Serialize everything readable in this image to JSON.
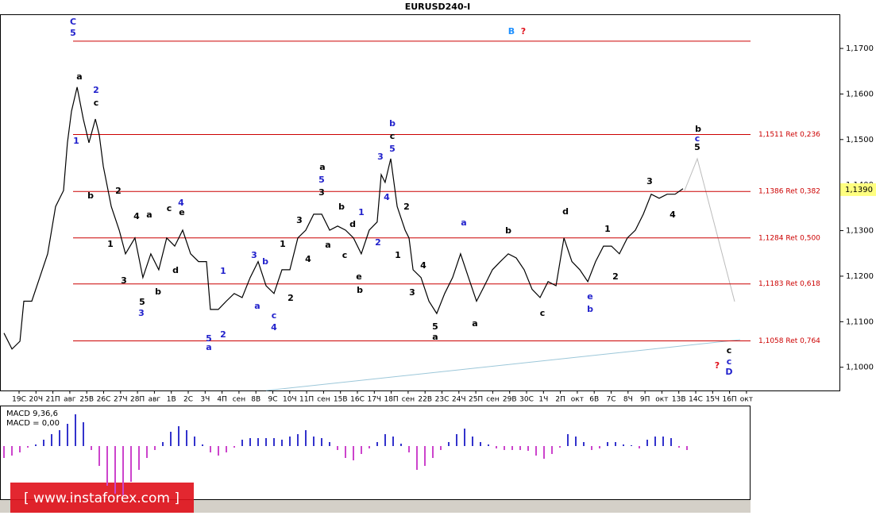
{
  "chart_data": [
    {
      "type": "line",
      "title": "EURUSD240-I",
      "xlim": [
        -1.1268,
        48.5446
      ],
      "xticks": [
        {
          "value": 0,
          "label": "19C"
        },
        {
          "value": 1,
          "label": "20Ч"
        },
        {
          "value": 2,
          "label": "21П"
        },
        {
          "value": 3,
          "label": "авг"
        },
        {
          "value": 4,
          "label": "25В"
        },
        {
          "value": 5,
          "label": "26C"
        },
        {
          "value": 6,
          "label": "27Ч"
        },
        {
          "value": 7,
          "label": "28П"
        },
        {
          "value": 8,
          "label": "авг"
        },
        {
          "value": 9,
          "label": "1B"
        },
        {
          "value": 10,
          "label": "2C"
        },
        {
          "value": 11,
          "label": "3Ч"
        },
        {
          "value": 12,
          "label": "4П"
        },
        {
          "value": 13,
          "label": "сен"
        },
        {
          "value": 14,
          "label": "8B"
        },
        {
          "value": 15,
          "label": "9C"
        },
        {
          "value": 16,
          "label": "10Ч"
        },
        {
          "value": 17,
          "label": "11П"
        },
        {
          "value": 18,
          "label": "сен"
        },
        {
          "value": 19,
          "label": "15B"
        },
        {
          "value": 20,
          "label": "16C"
        },
        {
          "value": 21,
          "label": "17Ч"
        },
        {
          "value": 22,
          "label": "18П"
        },
        {
          "value": 23,
          "label": "сен"
        },
        {
          "value": 24,
          "label": "22B"
        },
        {
          "value": 25,
          "label": "23C"
        },
        {
          "value": 26,
          "label": "24Ч"
        },
        {
          "value": 27,
          "label": "25П"
        },
        {
          "value": 28,
          "label": "сен"
        },
        {
          "value": 29,
          "label": "29B"
        },
        {
          "value": 30,
          "label": "30C"
        },
        {
          "value": 31,
          "label": "1Ч"
        },
        {
          "value": 32,
          "label": "2П"
        },
        {
          "value": 33,
          "label": "окт"
        },
        {
          "value": 34,
          "label": "6B"
        },
        {
          "value": 35,
          "label": "7C"
        },
        {
          "value": 36,
          "label": "8Ч"
        },
        {
          "value": 37,
          "label": "9П"
        },
        {
          "value": 38,
          "label": "окт"
        },
        {
          "value": 39,
          "label": "13B"
        },
        {
          "value": 40,
          "label": "14C"
        },
        {
          "value": 41,
          "label": "15Ч"
        },
        {
          "value": 42,
          "label": "16П"
        },
        {
          "value": 43,
          "label": "окт"
        }
      ],
      "ylim": [
        1.0949,
        1.1775
      ],
      "yticks": [
        {
          "value": 1.1,
          "label": "1,1000"
        },
        {
          "value": 1.11,
          "label": "1,1100"
        },
        {
          "value": 1.12,
          "label": "1,1200"
        },
        {
          "value": 1.13,
          "label": "1,1300"
        },
        {
          "value": 1.14,
          "label": "1,1400"
        },
        {
          "value": 1.15,
          "label": "1,1500"
        },
        {
          "value": 1.16,
          "label": "1,1600"
        },
        {
          "value": 1.17,
          "label": "1,1700"
        }
      ],
      "x": [
        -0.89,
        -0.42,
        0.05,
        0.28,
        0.75,
        1.22,
        1.69,
        2.16,
        2.63,
        2.86,
        3.1,
        3.43,
        3.8,
        4.13,
        4.51,
        4.74,
        4.98,
        5.45,
        5.92,
        6.29,
        6.85,
        7.32,
        7.79,
        8.26,
        8.73,
        9.2,
        9.67,
        10.14,
        10.61,
        11.08,
        11.31,
        11.78,
        12.25,
        12.72,
        13.19,
        13.66,
        14.13,
        14.6,
        15.07,
        15.54,
        16.01,
        16.48,
        16.95,
        17.42,
        17.89,
        18.36,
        18.83,
        19.3,
        19.77,
        20.23,
        20.7,
        21.17,
        21.41,
        21.64,
        21.97,
        22.35,
        22.82,
        23.05,
        23.29,
        23.76,
        24.23,
        24.69,
        25.16,
        25.63,
        26.1,
        26.57,
        27.04,
        27.51,
        27.98,
        28.45,
        28.92,
        29.39,
        29.86,
        30.33,
        30.8,
        31.27,
        31.74,
        32.21,
        32.68,
        33.15,
        33.62,
        34.08,
        34.55,
        35.02,
        35.49,
        35.96,
        36.43,
        36.9,
        37.37,
        37.84,
        38.31,
        38.78,
        39.25
      ],
      "series": [
        {
          "color": "#000000",
          "values": [
            1.1075,
            1.104,
            1.1057,
            1.1145,
            1.1145,
            1.1197,
            1.1249,
            1.1353,
            1.1388,
            1.1493,
            1.1562,
            1.1615,
            1.1545,
            1.1493,
            1.1545,
            1.151,
            1.1441,
            1.1353,
            1.1301,
            1.1249,
            1.1284,
            1.1197,
            1.1249,
            1.1214,
            1.1284,
            1.1266,
            1.1301,
            1.1249,
            1.1232,
            1.1232,
            1.1127,
            1.1127,
            1.1145,
            1.1162,
            1.1153,
            1.1197,
            1.1232,
            1.1179,
            1.1162,
            1.1214,
            1.1214,
            1.1284,
            1.1301,
            1.1336,
            1.1336,
            1.1301,
            1.131,
            1.1301,
            1.1284,
            1.1249,
            1.1301,
            1.1319,
            1.1423,
            1.1406,
            1.1458,
            1.1353,
            1.1301,
            1.1284,
            1.1214,
            1.1197,
            1.1145,
            1.1118,
            1.1162,
            1.1197,
            1.1249,
            1.1197,
            1.1145,
            1.1179,
            1.1214,
            1.1232,
            1.1249,
            1.124,
            1.1214,
            1.1171,
            1.1153,
            1.1188,
            1.1179,
            1.1284,
            1.1232,
            1.1214,
            1.1188,
            1.1232,
            1.1266,
            1.1266,
            1.1249,
            1.1284,
            1.1301,
            1.1336,
            1.138,
            1.1371,
            1.138,
            1.138,
            1.1392
          ]
        }
      ],
      "level_color": "#cc0000",
      "levels": [
        {
          "value": 1.1716
        },
        {
          "value": 1.1511,
          "label": "1,1511 Ret 0,236"
        },
        {
          "value": 1.1386,
          "label": "1,1386 Ret 0,382"
        },
        {
          "value": 1.1284,
          "label": "1,1284 Ret 0,500"
        },
        {
          "value": 1.1183,
          "label": "1,1183 Ret 0,618"
        },
        {
          "value": 1.1058,
          "label": "1,1058 Ret 0,764"
        }
      ],
      "last_price": {
        "value": 1.139,
        "label": "1,1390"
      },
      "annotations": [
        {
          "text": "C",
          "color": "#2222cc"
        },
        {
          "text": "5",
          "color": "#2222cc"
        },
        {
          "text": "a",
          "color": "#000000"
        },
        {
          "text": "2",
          "color": "#2222cc"
        },
        {
          "text": "c",
          "color": "#000000"
        },
        {
          "text": "1",
          "color": "#2222cc"
        },
        {
          "text": "b",
          "color": "#000000"
        },
        {
          "text": "2",
          "color": "#000000"
        },
        {
          "text": "1",
          "color": "#000000"
        },
        {
          "text": "3",
          "color": "#000000"
        },
        {
          "text": "4",
          "color": "#000000"
        },
        {
          "text": "a",
          "color": "#000000"
        },
        {
          "text": "5",
          "color": "#000000"
        },
        {
          "text": "3",
          "color": "#2222cc"
        },
        {
          "text": "b",
          "color": "#000000"
        },
        {
          "text": "c",
          "color": "#000000"
        },
        {
          "text": "4",
          "color": "#2222cc"
        },
        {
          "text": "e",
          "color": "#000000"
        },
        {
          "text": "d",
          "color": "#000000"
        },
        {
          "text": "1",
          "color": "#2222cc"
        },
        {
          "text": "5",
          "color": "#2222cc"
        },
        {
          "text": "a",
          "color": "#2222cc"
        },
        {
          "text": "2",
          "color": "#2222cc"
        },
        {
          "text": "3",
          "color": "#2222cc"
        },
        {
          "text": "b",
          "color": "#2222cc"
        },
        {
          "text": "a",
          "color": "#2222cc"
        },
        {
          "text": "c",
          "color": "#2222cc"
        },
        {
          "text": "4",
          "color": "#2222cc"
        },
        {
          "text": "2",
          "color": "#000000"
        },
        {
          "text": "1",
          "color": "#000000"
        },
        {
          "text": "3",
          "color": "#000000"
        },
        {
          "text": "4",
          "color": "#000000"
        },
        {
          "text": "a",
          "color": "#000000"
        },
        {
          "text": "5",
          "color": "#2222cc"
        },
        {
          "text": "3",
          "color": "#000000"
        },
        {
          "text": "a",
          "color": "#000000"
        },
        {
          "text": "b",
          "color": "#000000"
        },
        {
          "text": "c",
          "color": "#000000"
        },
        {
          "text": "d",
          "color": "#000000"
        },
        {
          "text": "1",
          "color": "#2222cc"
        },
        {
          "text": "e",
          "color": "#000000"
        },
        {
          "text": "b",
          "color": "#000000"
        },
        {
          "text": "3",
          "color": "#2222cc"
        },
        {
          "text": "4",
          "color": "#2222cc"
        },
        {
          "text": "2",
          "color": "#2222cc"
        },
        {
          "text": "b",
          "color": "#2222cc"
        },
        {
          "text": "c",
          "color": "#000000"
        },
        {
          "text": "5",
          "color": "#2222cc"
        },
        {
          "text": "2",
          "color": "#000000"
        },
        {
          "text": "1",
          "color": "#000000"
        },
        {
          "text": "4",
          "color": "#000000"
        },
        {
          "text": "3",
          "color": "#000000"
        },
        {
          "text": "5",
          "color": "#000000"
        },
        {
          "text": "a",
          "color": "#000000"
        },
        {
          "text": "a",
          "color": "#2222cc"
        },
        {
          "text": "a",
          "color": "#000000"
        },
        {
          "text": "b",
          "color": "#000000"
        },
        {
          "text": "c",
          "color": "#000000"
        },
        {
          "text": "d",
          "color": "#000000"
        },
        {
          "text": "e",
          "color": "#2222cc"
        },
        {
          "text": "b",
          "color": "#2222cc"
        },
        {
          "text": "1",
          "color": "#000000"
        },
        {
          "text": "2",
          "color": "#000000"
        },
        {
          "text": "3",
          "color": "#000000"
        },
        {
          "text": "4",
          "color": "#000000"
        },
        {
          "text": "b",
          "color": "#000000"
        },
        {
          "text": "c",
          "color": "#2222cc"
        },
        {
          "text": "5",
          "color": "#000000"
        },
        {
          "text": "B",
          "color": "#1e90ff"
        },
        {
          "text": "?",
          "color": "#e0101a"
        },
        {
          "text": "c",
          "color": "#000000"
        },
        {
          "text": "c",
          "color": "#2222cc"
        },
        {
          "text": "D",
          "color": "#2222cc"
        },
        {
          "text": "?",
          "color": "#e0101a"
        }
      ]
    },
    {
      "type": "bar",
      "title": "MACD 9,36,6",
      "readout": "MACD = 0,00",
      "ylim": [
        -0.0066,
        0.005
      ],
      "positive_color": "#3333cc",
      "negative_color": "#cc44cc",
      "values": [
        -0.0015,
        -0.0012,
        -0.0008,
        -0.0002,
        0.0002,
        0.0008,
        0.0015,
        0.002,
        0.0028,
        0.004,
        0.003,
        -0.0005,
        -0.0025,
        -0.005,
        -0.006,
        -0.0062,
        -0.0045,
        -0.003,
        -0.0015,
        -0.0005,
        0.0005,
        0.0018,
        0.0025,
        0.002,
        0.0012,
        0.0002,
        -0.0008,
        -0.0012,
        -0.0008,
        -0.0002,
        0.0008,
        0.001,
        0.001,
        0.001,
        0.001,
        0.0008,
        0.0012,
        0.0015,
        0.002,
        0.0012,
        0.001,
        0.0005,
        -0.0005,
        -0.0015,
        -0.0018,
        -0.001,
        -0.0003,
        0.0005,
        0.0015,
        0.0012,
        0.0003,
        -0.0008,
        -0.003,
        -0.0025,
        -0.0015,
        -0.0005,
        0.0005,
        0.0015,
        0.0022,
        0.0012,
        0.0005,
        0.0002,
        -0.0003,
        -0.0005,
        -0.0005,
        -0.0005,
        -0.0006,
        -0.0012,
        -0.0016,
        -0.001,
        -0.0002,
        0.0015,
        0.0012,
        0.0005,
        -0.0005,
        -0.0003,
        0.0005,
        0.0005,
        0.0002,
        0.0001,
        -0.0003,
        0.0008,
        0.0012,
        0.0012,
        0.001,
        -0.0002,
        -0.0005
      ]
    }
  ],
  "watermark": "[ www.instaforex.com ]"
}
